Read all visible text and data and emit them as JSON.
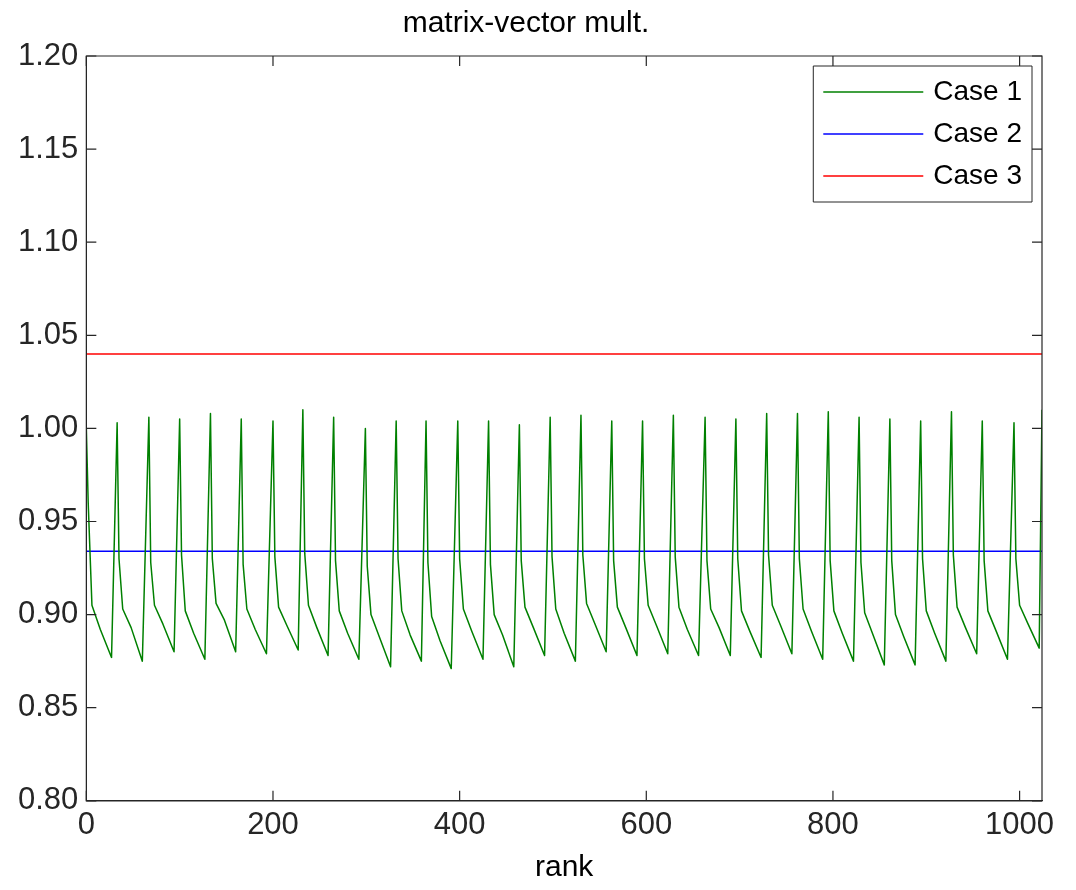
{
  "chart_data": {
    "type": "line",
    "title": "matrix-vector mult.",
    "xlabel": "rank",
    "xlim": [
      0,
      1024
    ],
    "xticks": [
      0,
      200,
      400,
      600,
      800,
      1000
    ],
    "ylim": [
      0.8,
      1.2
    ],
    "yticks": [
      {
        "value": 0.8,
        "label": "0.80"
      },
      {
        "value": 0.85,
        "label": "0.85"
      },
      {
        "value": 0.9,
        "label": "0.90"
      },
      {
        "value": 0.95,
        "label": "0.95"
      },
      {
        "value": 1.0,
        "label": "1.00"
      },
      {
        "value": 1.05,
        "label": "1.05"
      },
      {
        "value": 1.1,
        "label": "1.10"
      },
      {
        "value": 1.15,
        "label": "1.15"
      },
      {
        "value": 1.2,
        "label": "1.20"
      }
    ],
    "legend": "top right",
    "grid": false,
    "marker": "none",
    "line_style": "solid",
    "series": [
      {
        "name": "Case 1",
        "color": "#008000",
        "x": [
          0,
          2,
          6,
          15,
          27,
          33,
          35,
          39,
          48,
          60,
          67,
          69,
          73,
          82,
          94,
          100,
          102,
          106,
          115,
          127,
          133,
          135,
          139,
          148,
          160,
          166,
          168,
          172,
          181,
          193,
          200,
          202,
          206,
          215,
          227,
          232,
          234,
          238,
          247,
          259,
          265,
          267,
          271,
          280,
          292,
          299,
          301,
          305,
          314,
          326,
          332,
          334,
          338,
          347,
          359,
          364,
          366,
          370,
          379,
          391,
          398,
          400,
          404,
          413,
          425,
          431,
          433,
          437,
          446,
          458,
          464,
          466,
          470,
          479,
          491,
          497,
          499,
          503,
          512,
          524,
          530,
          532,
          536,
          545,
          557,
          563,
          565,
          569,
          578,
          590,
          596,
          598,
          602,
          611,
          623,
          629,
          631,
          635,
          644,
          656,
          663,
          665,
          669,
          678,
          690,
          696,
          698,
          702,
          711,
          723,
          729,
          731,
          735,
          744,
          756,
          762,
          764,
          768,
          777,
          789,
          795,
          797,
          801,
          810,
          822,
          828,
          830,
          834,
          843,
          855,
          861,
          863,
          867,
          876,
          888,
          894,
          896,
          900,
          909,
          921,
          927,
          929,
          933,
          942,
          954,
          960,
          962,
          966,
          975,
          987,
          994,
          996,
          1000,
          1009,
          1021,
          1024
        ],
        "values": [
          1.0,
          0.96,
          0.905,
          0.892,
          0.877,
          1.003,
          0.93,
          0.903,
          0.893,
          0.875,
          1.006,
          0.928,
          0.905,
          0.895,
          0.88,
          1.005,
          0.932,
          0.902,
          0.89,
          0.876,
          1.008,
          0.93,
          0.906,
          0.897,
          0.88,
          1.005,
          0.927,
          0.903,
          0.892,
          0.879,
          1.004,
          0.931,
          0.904,
          0.894,
          0.881,
          1.01,
          0.933,
          0.905,
          0.893,
          0.878,
          1.006,
          0.929,
          0.902,
          0.89,
          0.876,
          1.0,
          0.926,
          0.9,
          0.888,
          0.872,
          1.004,
          0.93,
          0.902,
          0.889,
          0.875,
          1.004,
          0.928,
          0.899,
          0.886,
          0.871,
          1.004,
          0.93,
          0.903,
          0.891,
          0.876,
          1.004,
          0.927,
          0.9,
          0.889,
          0.872,
          1.002,
          0.929,
          0.904,
          0.893,
          0.878,
          1.006,
          0.931,
          0.903,
          0.89,
          0.875,
          1.007,
          0.932,
          0.906,
          0.895,
          0.88,
          1.004,
          0.929,
          0.904,
          0.893,
          0.878,
          1.004,
          0.93,
          0.905,
          0.894,
          0.879,
          1.007,
          0.931,
          0.904,
          0.892,
          0.878,
          1.006,
          0.929,
          0.903,
          0.893,
          0.878,
          1.005,
          0.93,
          0.902,
          0.891,
          0.877,
          1.008,
          0.932,
          0.905,
          0.894,
          0.879,
          1.008,
          0.93,
          0.903,
          0.891,
          0.876,
          1.009,
          0.929,
          0.902,
          0.89,
          0.875,
          1.006,
          0.928,
          0.901,
          0.889,
          0.873,
          1.005,
          0.929,
          0.9,
          0.888,
          0.873,
          1.004,
          0.93,
          0.902,
          0.89,
          0.875,
          1.009,
          0.932,
          0.904,
          0.893,
          0.879,
          1.004,
          0.929,
          0.902,
          0.891,
          0.876,
          1.003,
          0.93,
          0.905,
          0.895,
          0.882,
          1.01
        ]
      },
      {
        "name": "Case 2",
        "color": "#0000ff",
        "x": [
          0,
          1024
        ],
        "values": [
          0.934,
          0.934
        ]
      },
      {
        "name": "Case 3",
        "color": "#ff0000",
        "x": [
          0,
          1024
        ],
        "values": [
          1.04,
          1.04
        ]
      }
    ]
  }
}
